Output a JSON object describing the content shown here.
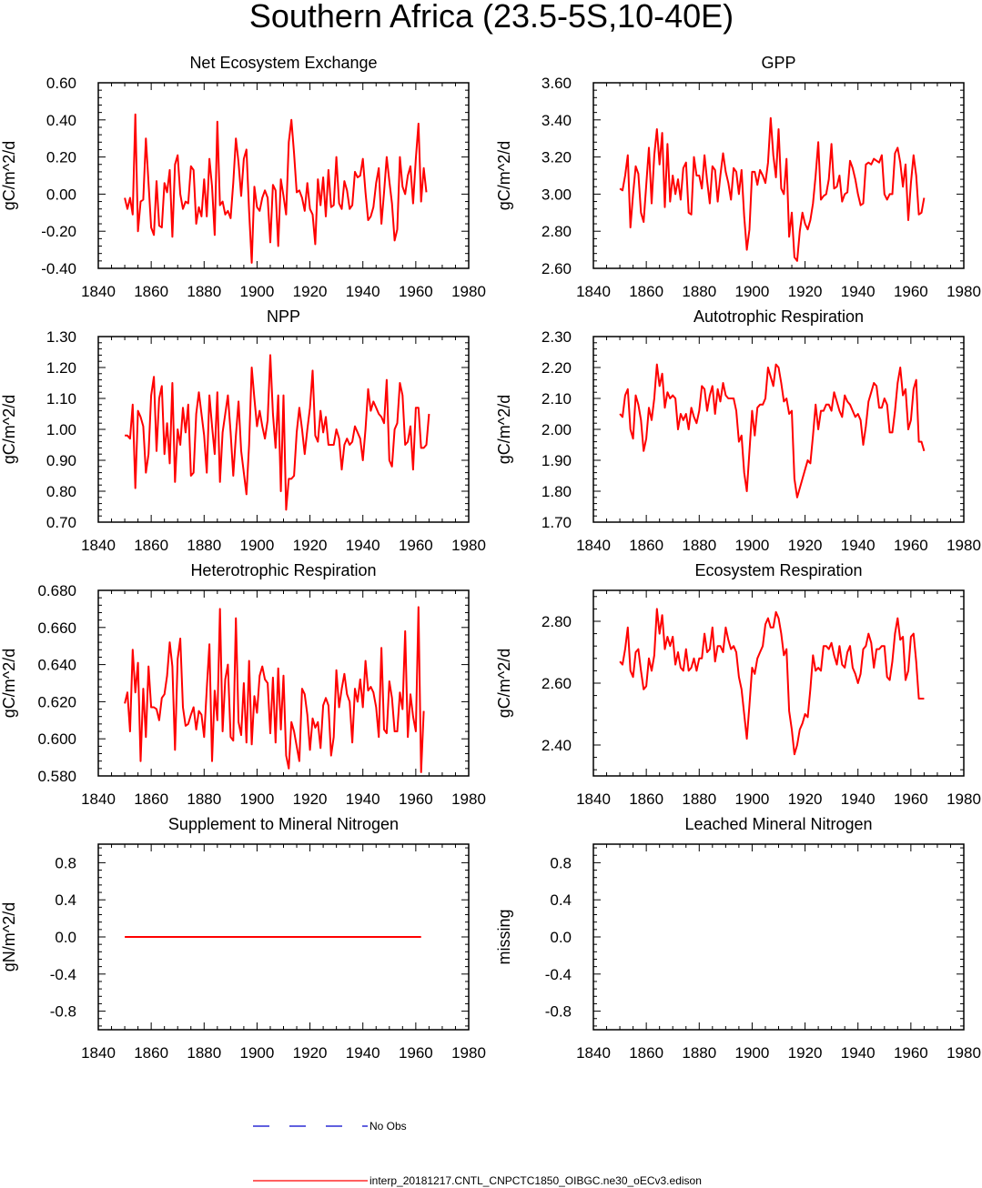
{
  "figure_title": "Southern Africa (23.5-5S,10-40E)",
  "colors": {
    "series": "#ff0000",
    "obs": "#0000cc",
    "axis": "#000000"
  },
  "legend": {
    "obs_label": "No Obs",
    "model_label": "interp_20181217.CNTL_CNPCTC1850_OIBGC.ne30_oECv3.edison"
  },
  "chart_data": [
    {
      "type": "line",
      "title": "Net Ecosystem Exchange",
      "ylabel": "gC/m^2/d",
      "xlim": [
        1840,
        1980
      ],
      "ylim": [
        -0.4,
        0.6
      ],
      "xticks": [
        "1840",
        "1860",
        "1880",
        "1900",
        "1920",
        "1940",
        "1960",
        "1980"
      ],
      "yticks": [
        "-0.40",
        "-0.20",
        "0.00",
        "0.20",
        "0.40",
        "0.60"
      ],
      "series": [
        {
          "name": "model",
          "x0": 1850,
          "values": [
            -0.02,
            -0.08,
            -0.02,
            -0.11,
            0.43,
            -0.2,
            -0.04,
            -0.03,
            0.3,
            0.06,
            -0.18,
            -0.22,
            0.07,
            -0.17,
            -0.18,
            0.06,
            0.01,
            0.13,
            -0.23,
            0.16,
            0.21,
            0.0,
            -0.08,
            -0.04,
            -0.05,
            0.15,
            0.13,
            -0.16,
            -0.07,
            -0.12,
            0.08,
            -0.12,
            0.19,
            0.04,
            -0.22,
            0.39,
            -0.06,
            -0.04,
            -0.11,
            -0.09,
            -0.13,
            0.06,
            0.3,
            0.17,
            -0.01,
            0.19,
            0.24,
            -0.09,
            -0.37,
            0.04,
            -0.07,
            -0.09,
            -0.02,
            0.02,
            -0.02,
            -0.26,
            0.05,
            0.02,
            -0.28,
            0.08,
            -0.01,
            -0.11,
            0.28,
            0.4,
            0.22,
            0.01,
            0.02,
            -0.02,
            -0.09,
            0.06,
            -0.08,
            -0.11,
            -0.27,
            0.08,
            -0.06,
            0.09,
            -0.12,
            0.13,
            -0.07,
            -0.06,
            0.2,
            -0.05,
            -0.08,
            0.07,
            0.02,
            -0.08,
            -0.06,
            0.12,
            0.09,
            0.1,
            0.19,
            0.01,
            -0.14,
            -0.12,
            -0.07,
            0.06,
            0.14,
            -0.16,
            0.01,
            0.2,
            0.07,
            -0.05,
            -0.25,
            -0.19,
            0.2,
            0.04,
            0.0,
            0.1,
            0.15,
            -0.05,
            0.19,
            0.38,
            -0.04,
            0.14,
            0.01
          ]
        }
      ]
    },
    {
      "type": "line",
      "title": "GPP",
      "ylabel": "gC/m^2/d",
      "xlim": [
        1840,
        1980
      ],
      "ylim": [
        2.6,
        3.6
      ],
      "xticks": [
        "1840",
        "1860",
        "1880",
        "1900",
        "1920",
        "1940",
        "1960",
        "1980"
      ],
      "yticks": [
        "2.60",
        "2.80",
        "3.00",
        "3.20",
        "3.40",
        "3.60"
      ],
      "series": [
        {
          "name": "model",
          "x0": 1850,
          "values": [
            3.03,
            3.02,
            3.1,
            3.21,
            2.82,
            3.0,
            3.15,
            3.11,
            2.9,
            2.85,
            3.05,
            3.25,
            2.95,
            3.21,
            3.35,
            3.16,
            3.33,
            2.93,
            3.27,
            2.96,
            3.1,
            3.0,
            3.08,
            2.97,
            3.14,
            3.17,
            2.9,
            2.89,
            3.2,
            3.1,
            3.1,
            3.03,
            3.21,
            3.07,
            2.95,
            3.15,
            3.13,
            2.96,
            3.1,
            3.22,
            3.12,
            3.06,
            2.97,
            3.14,
            3.12,
            3.0,
            3.13,
            2.88,
            2.7,
            2.81,
            3.12,
            3.12,
            3.05,
            3.13,
            3.1,
            3.06,
            3.17,
            3.41,
            3.21,
            3.09,
            3.35,
            3.03,
            3.0,
            3.19,
            2.77,
            2.9,
            2.66,
            2.64,
            2.8,
            2.9,
            2.84,
            2.81,
            2.86,
            2.95,
            3.1,
            3.28,
            2.97,
            2.99,
            3.0,
            3.08,
            3.27,
            3.03,
            3.04,
            3.1,
            2.96,
            3.0,
            3.01,
            3.18,
            3.14,
            3.08,
            3.0,
            2.94,
            2.95,
            3.16,
            3.17,
            3.16,
            3.19,
            3.18,
            3.17,
            3.21,
            3.0,
            2.97,
            3.0,
            3.0,
            3.22,
            3.25,
            3.17,
            3.04,
            3.16,
            2.86,
            3.06,
            3.21,
            3.1,
            2.89,
            2.9,
            2.98
          ]
        }
      ]
    },
    {
      "type": "line",
      "title": "NPP",
      "ylabel": "gC/m^2/d",
      "xlim": [
        1840,
        1980
      ],
      "ylim": [
        0.7,
        1.3
      ],
      "xticks": [
        "1840",
        "1860",
        "1880",
        "1900",
        "1920",
        "1940",
        "1960",
        "1980"
      ],
      "yticks": [
        "0.70",
        "0.80",
        "0.90",
        "1.00",
        "1.10",
        "1.20",
        "1.30"
      ],
      "series": [
        {
          "name": "model",
          "x0": 1850,
          "values": [
            0.98,
            0.98,
            0.97,
            1.08,
            0.81,
            1.06,
            1.04,
            1.01,
            0.86,
            0.92,
            1.11,
            1.17,
            0.93,
            1.1,
            1.14,
            0.92,
            1.02,
            0.89,
            1.15,
            0.83,
            1.0,
            0.95,
            1.07,
            0.99,
            1.08,
            0.85,
            0.86,
            1.05,
            1.12,
            1.05,
            0.98,
            0.86,
            1.11,
            1.01,
            0.92,
            1.12,
            0.83,
            0.99,
            1.05,
            1.11,
            0.99,
            0.85,
            0.98,
            1.09,
            0.93,
            0.86,
            0.79,
            0.95,
            1.2,
            1.1,
            1.01,
            1.06,
            1.01,
            0.97,
            1.03,
            1.24,
            1.05,
            0.94,
            1.11,
            0.8,
            1.11,
            0.74,
            0.84,
            0.84,
            0.85,
            0.99,
            1.07,
            1.0,
            0.92,
            1.0,
            1.07,
            1.19,
            0.98,
            0.96,
            1.06,
            0.99,
            1.04,
            0.95,
            0.95,
            0.95,
            1.0,
            0.97,
            0.87,
            0.95,
            0.97,
            0.95,
            0.96,
            1.01,
            0.99,
            0.97,
            0.9,
            1.0,
            1.13,
            1.06,
            1.09,
            1.07,
            1.05,
            1.04,
            1.02,
            1.16,
            0.9,
            0.88,
            1.0,
            1.02,
            1.15,
            1.11,
            0.95,
            0.96,
            1.01,
            0.87,
            1.07,
            1.07,
            0.94,
            0.94,
            0.95,
            1.05
          ]
        }
      ]
    },
    {
      "type": "line",
      "title": "Autotrophic Respiration",
      "ylabel": "gC/m^2/d",
      "xlim": [
        1840,
        1980
      ],
      "ylim": [
        1.7,
        2.3
      ],
      "xticks": [
        "1840",
        "1860",
        "1880",
        "1900",
        "1920",
        "1940",
        "1960",
        "1980"
      ],
      "yticks": [
        "1.70",
        "1.80",
        "1.90",
        "2.00",
        "2.10",
        "2.20",
        "2.30"
      ],
      "series": [
        {
          "name": "model",
          "x0": 1850,
          "values": [
            2.05,
            2.04,
            2.11,
            2.13,
            2.0,
            1.97,
            2.11,
            2.08,
            2.03,
            1.93,
            1.97,
            2.07,
            2.03,
            2.1,
            2.21,
            2.14,
            2.18,
            2.07,
            2.12,
            2.1,
            2.11,
            2.1,
            2.0,
            2.05,
            2.03,
            2.05,
            2.0,
            2.07,
            2.04,
            2.02,
            2.06,
            2.14,
            2.13,
            2.06,
            2.11,
            2.14,
            2.05,
            2.13,
            2.09,
            2.15,
            2.11,
            2.1,
            2.1,
            2.1,
            2.06,
            1.96,
            1.98,
            1.86,
            1.8,
            1.93,
            2.06,
            1.98,
            2.07,
            2.08,
            2.08,
            2.1,
            2.2,
            2.17,
            2.14,
            2.21,
            2.2,
            2.15,
            2.09,
            2.1,
            2.05,
            2.06,
            1.84,
            1.78,
            1.81,
            1.84,
            1.87,
            1.9,
            1.89,
            1.98,
            2.08,
            2.0,
            2.06,
            2.06,
            2.08,
            2.08,
            2.06,
            2.12,
            2.09,
            2.06,
            2.04,
            2.11,
            2.09,
            2.08,
            2.06,
            2.04,
            2.05,
            2.03,
            1.95,
            2.01,
            2.09,
            2.12,
            2.15,
            2.14,
            2.07,
            2.07,
            2.1,
            2.08,
            1.99,
            1.99,
            2.06,
            2.15,
            2.2,
            2.11,
            2.13,
            2.0,
            2.03,
            2.13,
            2.16,
            1.96,
            1.96,
            1.93
          ]
        }
      ]
    },
    {
      "type": "line",
      "title": "Heterotrophic Respiration",
      "ylabel": "gC/m^2/d",
      "xlim": [
        1840,
        1980
      ],
      "ylim": [
        0.58,
        0.68
      ],
      "xticks": [
        "1840",
        "1860",
        "1880",
        "1900",
        "1920",
        "1940",
        "1960",
        "1980"
      ],
      "yticks": [
        "0.580",
        "0.600",
        "0.620",
        "0.640",
        "0.660",
        "0.680"
      ],
      "series": [
        {
          "name": "model",
          "x0": 1850,
          "values": [
            0.619,
            0.625,
            0.604,
            0.648,
            0.625,
            0.641,
            0.588,
            0.627,
            0.601,
            0.639,
            0.617,
            0.617,
            0.616,
            0.61,
            0.622,
            0.624,
            0.634,
            0.652,
            0.639,
            0.594,
            0.643,
            0.654,
            0.617,
            0.607,
            0.608,
            0.613,
            0.617,
            0.605,
            0.615,
            0.613,
            0.601,
            0.627,
            0.651,
            0.588,
            0.626,
            0.61,
            0.67,
            0.604,
            0.632,
            0.64,
            0.601,
            0.599,
            0.665,
            0.609,
            0.602,
            0.63,
            0.598,
            0.642,
            0.597,
            0.623,
            0.614,
            0.634,
            0.639,
            0.632,
            0.63,
            0.603,
            0.633,
            0.598,
            0.638,
            0.605,
            0.634,
            0.591,
            0.584,
            0.609,
            0.604,
            0.596,
            0.588,
            0.627,
            0.624,
            0.613,
            0.594,
            0.611,
            0.606,
            0.609,
            0.595,
            0.618,
            0.622,
            0.618,
            0.591,
            0.601,
            0.637,
            0.617,
            0.627,
            0.635,
            0.624,
            0.62,
            0.598,
            0.627,
            0.62,
            0.632,
            0.617,
            0.642,
            0.626,
            0.628,
            0.625,
            0.617,
            0.601,
            0.649,
            0.605,
            0.603,
            0.631,
            0.622,
            0.604,
            0.604,
            0.625,
            0.616,
            0.658,
            0.601,
            0.624,
            0.612,
            0.604,
            0.671,
            0.582,
            0.615
          ]
        }
      ]
    },
    {
      "type": "line",
      "title": "Ecosystem Respiration",
      "ylabel": "gC/m^2/d",
      "xlim": [
        1840,
        1980
      ],
      "ylim": [
        2.3,
        2.9
      ],
      "xticks": [
        "1840",
        "1860",
        "1880",
        "1900",
        "1920",
        "1940",
        "1960",
        "1980"
      ],
      "yticks": [
        "2.40",
        "2.60",
        "2.80"
      ],
      "series": [
        {
          "name": "model",
          "x0": 1850,
          "values": [
            2.67,
            2.66,
            2.71,
            2.78,
            2.64,
            2.62,
            2.7,
            2.71,
            2.64,
            2.58,
            2.59,
            2.68,
            2.64,
            2.69,
            2.84,
            2.76,
            2.82,
            2.71,
            2.75,
            2.72,
            2.75,
            2.66,
            2.7,
            2.65,
            2.64,
            2.71,
            2.64,
            2.65,
            2.68,
            2.64,
            2.68,
            2.68,
            2.76,
            2.7,
            2.71,
            2.78,
            2.67,
            2.72,
            2.72,
            2.7,
            2.78,
            2.74,
            2.71,
            2.72,
            2.7,
            2.62,
            2.58,
            2.5,
            2.42,
            2.53,
            2.65,
            2.63,
            2.68,
            2.7,
            2.72,
            2.79,
            2.81,
            2.78,
            2.78,
            2.83,
            2.81,
            2.76,
            2.69,
            2.71,
            2.51,
            2.45,
            2.37,
            2.4,
            2.45,
            2.47,
            2.5,
            2.49,
            2.58,
            2.69,
            2.64,
            2.65,
            2.64,
            2.72,
            2.72,
            2.71,
            2.73,
            2.69,
            2.66,
            2.72,
            2.66,
            2.65,
            2.7,
            2.72,
            2.65,
            2.63,
            2.6,
            2.63,
            2.71,
            2.72,
            2.76,
            2.73,
            2.65,
            2.71,
            2.71,
            2.72,
            2.72,
            2.62,
            2.61,
            2.67,
            2.76,
            2.81,
            2.74,
            2.75,
            2.61,
            2.64,
            2.75,
            2.76,
            2.67,
            2.55,
            2.55,
            2.55
          ]
        }
      ]
    },
    {
      "type": "line",
      "title": "Supplement to Mineral Nitrogen",
      "ylabel": "gN/m^2/d",
      "xlim": [
        1840,
        1980
      ],
      "ylim": [
        -1,
        1
      ],
      "xticks": [
        "1840",
        "1860",
        "1880",
        "1900",
        "1920",
        "1940",
        "1960",
        "1980"
      ],
      "yticks": [
        "-0.8",
        "-0.4",
        "0.0",
        "0.4",
        "0.8"
      ],
      "series": [
        {
          "name": "model",
          "x": [
            1850,
            1962
          ],
          "values": [
            0,
            0
          ]
        }
      ]
    },
    {
      "type": "line",
      "title": "Leached Mineral Nitrogen",
      "ylabel": "missing",
      "xlim": [
        1840,
        1980
      ],
      "ylim": [
        -1,
        1
      ],
      "xticks": [
        "1840",
        "1860",
        "1880",
        "1900",
        "1920",
        "1940",
        "1960",
        "1980"
      ],
      "yticks": [
        "-0.8",
        "-0.4",
        "0.0",
        "0.4",
        "0.8"
      ],
      "series": []
    }
  ]
}
